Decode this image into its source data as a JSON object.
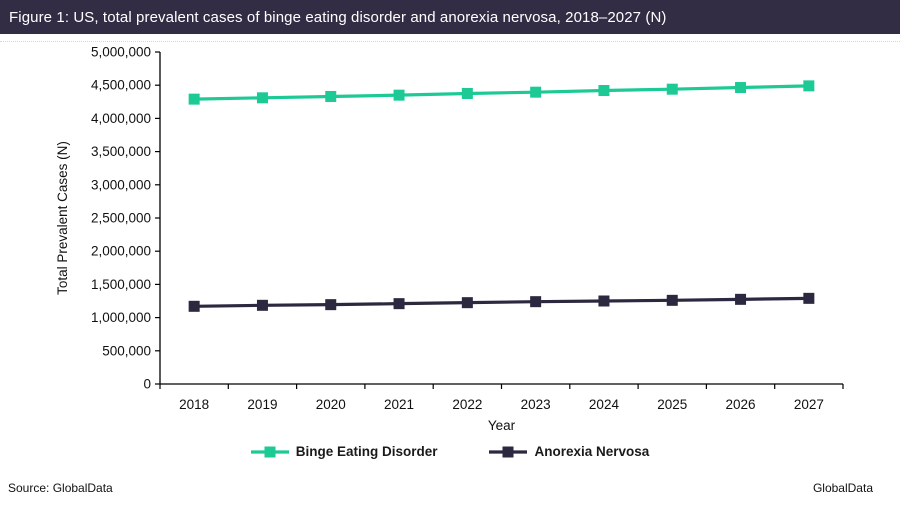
{
  "title_bar": {
    "text": "Figure 1: US, total prevalent cases of binge eating disorder and anorexia nervosa, 2018–2027 (N)",
    "bg": "#322D44",
    "fg": "#FFFFFF"
  },
  "chart_data": {
    "type": "line",
    "title": "US, total prevalent cases of binge eating disorder and anorexia nervosa, 2018–2027 (N)",
    "categories": [
      "2018",
      "2019",
      "2020",
      "2021",
      "2022",
      "2023",
      "2024",
      "2025",
      "2026",
      "2027"
    ],
    "series": [
      {
        "name": "Binge Eating Disorder",
        "color": "#1DCA96",
        "marker": "square",
        "values": [
          4290000,
          4310000,
          4330000,
          4350000,
          4375000,
          4395000,
          4420000,
          4440000,
          4465000,
          4490000
        ]
      },
      {
        "name": "Anorexia Nervosa",
        "color": "#2B2840",
        "marker": "square",
        "values": [
          1170000,
          1185000,
          1195000,
          1210000,
          1225000,
          1240000,
          1250000,
          1260000,
          1275000,
          1290000
        ]
      }
    ],
    "xlabel": "Year",
    "ylabel": "Total Prevalent Cases (N)",
    "ylim": [
      0,
      5000000
    ],
    "ytick_step": 500000,
    "yticks": [
      "0",
      "500,000",
      "1,000,000",
      "1,500,000",
      "2,000,000",
      "2,500,000",
      "3,000,000",
      "3,500,000",
      "4,000,000",
      "4,500,000",
      "5,000,000"
    ],
    "grid": false,
    "legend_position": "bottom",
    "axis_color": "#000000"
  },
  "footer": {
    "source": "Source: GlobalData",
    "brand": "GlobalData"
  }
}
